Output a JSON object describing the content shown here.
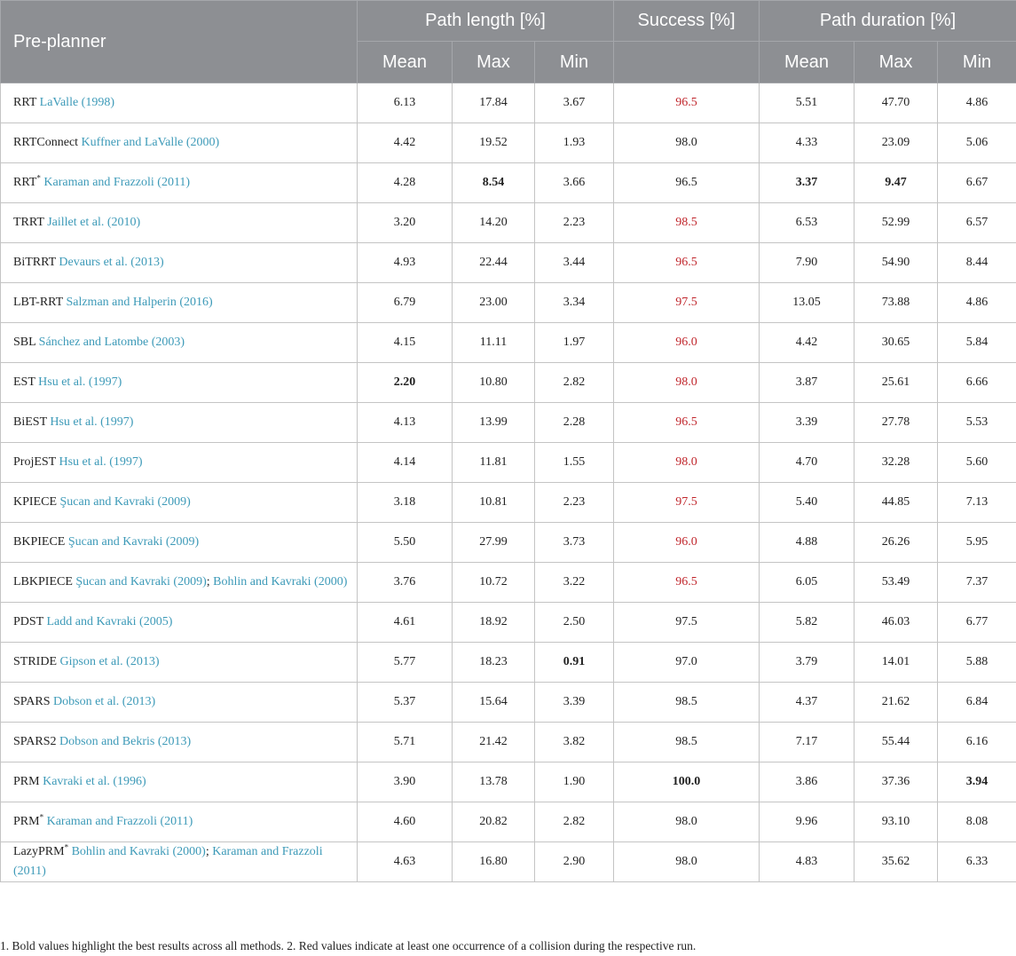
{
  "header": {
    "pre_planner": "Pre-planner",
    "path_length": "Path length [%]",
    "success": "Success [%]",
    "path_duration": "Path duration [%]",
    "mean": "Mean",
    "max": "Max",
    "min": "Min"
  },
  "colors": {
    "header_bg": "#8d8f93",
    "citation": "#3d9ab8",
    "collision_red": "#c0262c"
  },
  "rows": [
    {
      "name": "RRT",
      "sup": "",
      "cite": "LaValle (1998)",
      "pl_mean": "6.13",
      "pl_max": "17.84",
      "pl_min": "3.67",
      "success": "96.5",
      "success_red": true,
      "pd_mean": "5.51",
      "pd_max": "47.70",
      "pd_min": "4.86",
      "bold": []
    },
    {
      "name": "RRTConnect",
      "sup": "",
      "cite": "Kuffner and LaValle (2000)",
      "pl_mean": "4.42",
      "pl_max": "19.52",
      "pl_min": "1.93",
      "success": "98.0",
      "success_red": false,
      "pd_mean": "4.33",
      "pd_max": "23.09",
      "pd_min": "5.06",
      "bold": []
    },
    {
      "name": "RRT",
      "sup": "*",
      "cite": "Karaman and Frazzoli (2011)",
      "pl_mean": "4.28",
      "pl_max": "8.54",
      "pl_min": "3.66",
      "success": "96.5",
      "success_red": false,
      "pd_mean": "3.37",
      "pd_max": "9.47",
      "pd_min": "6.67",
      "bold": [
        "pl_max",
        "pd_mean",
        "pd_max"
      ]
    },
    {
      "name": "TRRT",
      "sup": "",
      "cite": "Jaillet et al. (2010)",
      "pl_mean": "3.20",
      "pl_max": "14.20",
      "pl_min": "2.23",
      "success": "98.5",
      "success_red": true,
      "pd_mean": "6.53",
      "pd_max": "52.99",
      "pd_min": "6.57",
      "bold": []
    },
    {
      "name": "BiTRRT",
      "sup": "",
      "cite": "Devaurs et al. (2013)",
      "pl_mean": "4.93",
      "pl_max": "22.44",
      "pl_min": "3.44",
      "success": "96.5",
      "success_red": true,
      "pd_mean": "7.90",
      "pd_max": "54.90",
      "pd_min": "8.44",
      "bold": []
    },
    {
      "name": "LBT-RRT",
      "sup": "",
      "cite": "Salzman and Halperin (2016)",
      "pl_mean": "6.79",
      "pl_max": "23.00",
      "pl_min": "3.34",
      "success": "97.5",
      "success_red": true,
      "pd_mean": "13.05",
      "pd_max": "73.88",
      "pd_min": "4.86",
      "bold": []
    },
    {
      "name": "SBL",
      "sup": "",
      "cite": "Sánchez and Latombe (2003)",
      "pl_mean": "4.15",
      "pl_max": "11.11",
      "pl_min": "1.97",
      "success": "96.0",
      "success_red": true,
      "pd_mean": "4.42",
      "pd_max": "30.65",
      "pd_min": "5.84",
      "bold": []
    },
    {
      "name": "EST",
      "sup": "",
      "cite": "Hsu et al. (1997)",
      "pl_mean": "2.20",
      "pl_max": "10.80",
      "pl_min": "2.82",
      "success": "98.0",
      "success_red": true,
      "pd_mean": "3.87",
      "pd_max": "25.61",
      "pd_min": "6.66",
      "bold": [
        "pl_mean"
      ]
    },
    {
      "name": "BiEST",
      "sup": "",
      "cite": "Hsu et al. (1997)",
      "pl_mean": "4.13",
      "pl_max": "13.99",
      "pl_min": "2.28",
      "success": "96.5",
      "success_red": true,
      "pd_mean": "3.39",
      "pd_max": "27.78",
      "pd_min": "5.53",
      "bold": []
    },
    {
      "name": "ProjEST",
      "sup": "",
      "cite": "Hsu et al. (1997)",
      "pl_mean": "4.14",
      "pl_max": "11.81",
      "pl_min": "1.55",
      "success": "98.0",
      "success_red": true,
      "pd_mean": "4.70",
      "pd_max": "32.28",
      "pd_min": "5.60",
      "bold": []
    },
    {
      "name": "KPIECE",
      "sup": "",
      "cite": "Şucan and Kavraki (2009)",
      "pl_mean": "3.18",
      "pl_max": "10.81",
      "pl_min": "2.23",
      "success": "97.5",
      "success_red": true,
      "pd_mean": "5.40",
      "pd_max": "44.85",
      "pd_min": "7.13",
      "bold": []
    },
    {
      "name": "BKPIECE",
      "sup": "",
      "cite": "Şucan and Kavraki (2009)",
      "pl_mean": "5.50",
      "pl_max": "27.99",
      "pl_min": "3.73",
      "success": "96.0",
      "success_red": true,
      "pd_mean": "4.88",
      "pd_max": "26.26",
      "pd_min": "5.95",
      "bold": []
    },
    {
      "name": "LBKPIECE",
      "sup": "",
      "cite": "Şucan and Kavraki (2009)",
      "cite2": "Bohlin and Kavraki (2000)",
      "pl_mean": "3.76",
      "pl_max": "10.72",
      "pl_min": "3.22",
      "success": "96.5",
      "success_red": true,
      "pd_mean": "6.05",
      "pd_max": "53.49",
      "pd_min": "7.37",
      "bold": []
    },
    {
      "name": "PDST",
      "sup": "",
      "cite": "Ladd and Kavraki (2005)",
      "pl_mean": "4.61",
      "pl_max": "18.92",
      "pl_min": "2.50",
      "success": "97.5",
      "success_red": false,
      "pd_mean": "5.82",
      "pd_max": "46.03",
      "pd_min": "6.77",
      "bold": []
    },
    {
      "name": "STRIDE",
      "sup": "",
      "cite": "Gipson et al. (2013)",
      "pl_mean": "5.77",
      "pl_max": "18.23",
      "pl_min": "0.91",
      "success": "97.0",
      "success_red": false,
      "pd_mean": "3.79",
      "pd_max": "14.01",
      "pd_min": "5.88",
      "bold": [
        "pl_min"
      ]
    },
    {
      "name": "SPARS",
      "sup": "",
      "cite": "Dobson et al. (2013)",
      "pl_mean": "5.37",
      "pl_max": "15.64",
      "pl_min": "3.39",
      "success": "98.5",
      "success_red": false,
      "pd_mean": "4.37",
      "pd_max": "21.62",
      "pd_min": "6.84",
      "bold": []
    },
    {
      "name": "SPARS2",
      "sup": "",
      "cite": "Dobson and Bekris (2013)",
      "pl_mean": "5.71",
      "pl_max": "21.42",
      "pl_min": "3.82",
      "success": "98.5",
      "success_red": false,
      "pd_mean": "7.17",
      "pd_max": "55.44",
      "pd_min": "6.16",
      "bold": []
    },
    {
      "name": "PRM",
      "sup": "",
      "cite": "Kavraki et al. (1996)",
      "pl_mean": "3.90",
      "pl_max": "13.78",
      "pl_min": "1.90",
      "success": "100.0",
      "success_red": false,
      "pd_mean": "3.86",
      "pd_max": "37.36",
      "pd_min": "3.94",
      "bold": [
        "success",
        "pd_min"
      ]
    },
    {
      "name": "PRM",
      "sup": "*",
      "cite": "Karaman and Frazzoli (2011)",
      "pl_mean": "4.60",
      "pl_max": "20.82",
      "pl_min": "2.82",
      "success": "98.0",
      "success_red": false,
      "pd_mean": "9.96",
      "pd_max": "93.10",
      "pd_min": "8.08",
      "bold": []
    },
    {
      "name": "LazyPRM",
      "sup": "*",
      "cite": "Bohlin and Kavraki (2000)",
      "cite2": "Karaman and Frazzoli (2011)",
      "pl_mean": "4.63",
      "pl_max": "16.80",
      "pl_min": "2.90",
      "success": "98.0",
      "success_red": false,
      "pd_mean": "4.83",
      "pd_max": "35.62",
      "pd_min": "6.33",
      "bold": []
    }
  ],
  "footnote": "1. Bold values highlight the best results across all methods. 2. Red values indicate at least one occurrence of a collision during the respective run."
}
